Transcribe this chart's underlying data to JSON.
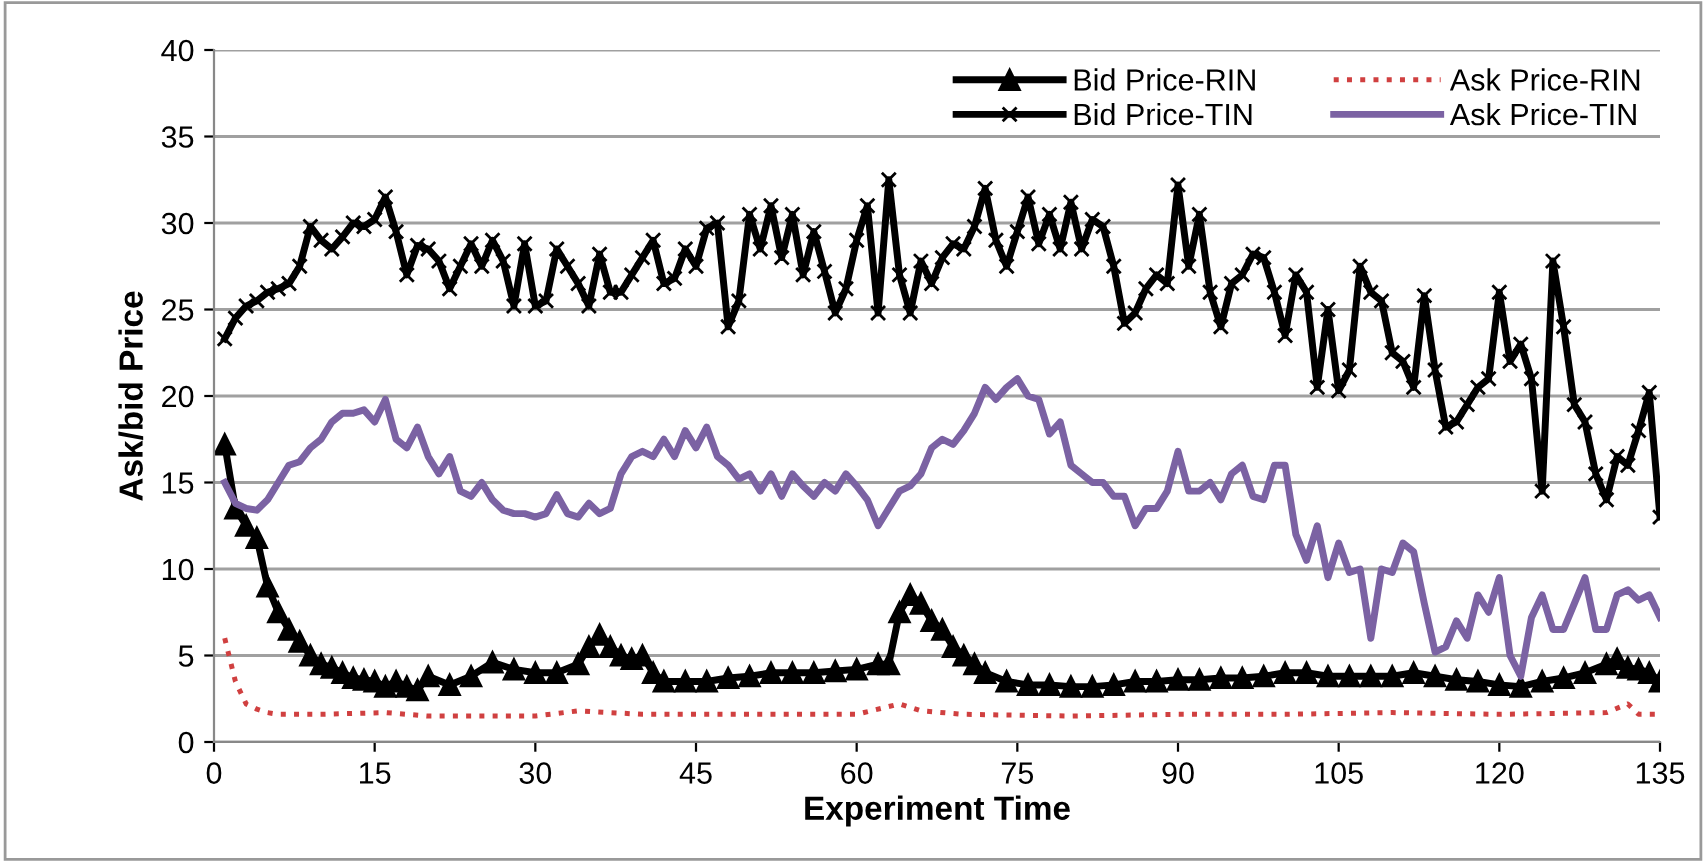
{
  "chart_data": {
    "type": "line",
    "xlabel": "Experiment Time",
    "ylabel": "Ask/bid Price",
    "xlim": [
      0,
      135
    ],
    "xticks": [
      0,
      15,
      30,
      45,
      60,
      75,
      90,
      105,
      120,
      135
    ],
    "ylim": [
      0,
      40
    ],
    "yticks": [
      0,
      5,
      10,
      15,
      20,
      25,
      30,
      35,
      40
    ],
    "grid": "y",
    "legend": "top right",
    "series": [
      {
        "name": "Bid Price-RIN",
        "color": "#000000",
        "marker": "triangle",
        "line_style": "solid",
        "x": [
          1,
          2,
          3,
          4,
          5,
          6,
          7,
          8,
          9,
          10,
          11,
          12,
          13,
          14,
          15,
          16,
          17,
          18,
          19,
          20,
          22,
          24,
          26,
          28,
          30,
          32,
          34,
          35,
          36,
          37,
          38,
          39,
          40,
          41,
          42,
          44,
          46,
          48,
          50,
          52,
          54,
          56,
          58,
          60,
          62,
          63,
          64,
          65,
          66,
          67,
          68,
          69,
          70,
          71,
          72,
          74,
          76,
          78,
          80,
          82,
          84,
          86,
          88,
          90,
          92,
          94,
          96,
          98,
          100,
          102,
          104,
          106,
          108,
          110,
          112,
          114,
          116,
          118,
          120,
          122,
          124,
          126,
          128,
          130,
          131,
          132,
          133,
          134,
          135
        ],
        "values": [
          17.2,
          13.5,
          12.5,
          11.8,
          9,
          7.5,
          6.5,
          5.8,
          5,
          4.5,
          4.3,
          4,
          3.7,
          3.6,
          3.5,
          3.2,
          3.5,
          3.2,
          3,
          3.8,
          3.3,
          3.8,
          4.6,
          4.2,
          4,
          4,
          4.5,
          5.5,
          6.2,
          5.5,
          5,
          4.8,
          5,
          4,
          3.5,
          3.5,
          3.5,
          3.7,
          3.8,
          4,
          4,
          4,
          4.1,
          4.2,
          4.5,
          4.5,
          7.5,
          8.5,
          8,
          7,
          6.5,
          5.5,
          5,
          4.5,
          4,
          3.5,
          3.3,
          3.3,
          3.2,
          3.2,
          3.3,
          3.5,
          3.5,
          3.6,
          3.6,
          3.7,
          3.7,
          3.8,
          4,
          4,
          3.8,
          3.8,
          3.8,
          3.8,
          4,
          3.8,
          3.6,
          3.5,
          3.3,
          3.2,
          3.5,
          3.7,
          4,
          4.5,
          4.8,
          4.3,
          4.2,
          4,
          3.5
        ]
      },
      {
        "name": "Ask Price-RIN",
        "color": "#d04040",
        "marker": "none",
        "line_style": "dotted",
        "x": [
          1,
          2,
          3,
          4,
          5,
          6,
          10,
          16,
          20,
          30,
          34,
          40,
          50,
          60,
          64,
          66,
          70,
          80,
          90,
          100,
          110,
          120,
          130,
          132,
          133,
          135
        ],
        "values": [
          6,
          3.5,
          2.2,
          1.9,
          1.7,
          1.6,
          1.6,
          1.7,
          1.5,
          1.5,
          1.8,
          1.6,
          1.6,
          1.6,
          2.2,
          1.8,
          1.6,
          1.5,
          1.6,
          1.6,
          1.7,
          1.6,
          1.7,
          2.2,
          1.6,
          1.6
        ]
      },
      {
        "name": "Bid Price-TIN",
        "color": "#000000",
        "marker": "cross",
        "line_style": "solid",
        "x": [
          1,
          2,
          3,
          4,
          5,
          6,
          7,
          8,
          9,
          10,
          11,
          12,
          13,
          14,
          15,
          16,
          17,
          18,
          19,
          20,
          21,
          22,
          23,
          24,
          25,
          26,
          27,
          28,
          29,
          30,
          31,
          32,
          33,
          34,
          35,
          36,
          37,
          38,
          39,
          40,
          41,
          42,
          43,
          44,
          45,
          46,
          47,
          48,
          49,
          50,
          51,
          52,
          53,
          54,
          55,
          56,
          57,
          58,
          59,
          60,
          61,
          62,
          63,
          64,
          65,
          66,
          67,
          68,
          69,
          70,
          71,
          72,
          73,
          74,
          75,
          76,
          77,
          78,
          79,
          80,
          81,
          82,
          83,
          84,
          85,
          86,
          87,
          88,
          89,
          90,
          91,
          92,
          93,
          94,
          95,
          96,
          97,
          98,
          99,
          100,
          101,
          102,
          103,
          104,
          105,
          106,
          107,
          108,
          109,
          110,
          111,
          112,
          113,
          114,
          115,
          116,
          117,
          118,
          119,
          120,
          121,
          122,
          123,
          124,
          125,
          126,
          127,
          128,
          129,
          130,
          131,
          132,
          133,
          134,
          135
        ],
        "values": [
          23.3,
          24.5,
          25.2,
          25.5,
          26,
          26.2,
          26.5,
          27.5,
          29.8,
          29,
          28.5,
          29.2,
          30,
          29.8,
          30.2,
          31.5,
          29.5,
          27,
          28.7,
          28.5,
          27.8,
          26.2,
          27.5,
          28.8,
          27.5,
          29,
          27.8,
          25.2,
          28.8,
          25.2,
          25.5,
          28.5,
          27.5,
          26.5,
          25.2,
          28.2,
          26,
          26,
          27,
          28,
          29,
          26.5,
          26.8,
          28.5,
          27.5,
          29.7,
          30,
          24,
          25.5,
          30.5,
          28.5,
          31,
          28,
          30.5,
          27,
          29.5,
          27.2,
          24.8,
          26.2,
          29,
          31,
          24.8,
          32.5,
          27,
          24.8,
          27.8,
          26.5,
          28,
          28.8,
          28.5,
          29.8,
          32,
          29,
          27.5,
          29.5,
          31.5,
          28.8,
          30.5,
          28.5,
          31.2,
          28.5,
          30.2,
          29.8,
          27.5,
          24.2,
          24.8,
          26.2,
          27,
          26.5,
          32.2,
          27.5,
          30.5,
          26,
          24,
          26.5,
          27,
          28.2,
          28,
          26,
          23.5,
          27,
          26,
          20.5,
          25,
          20.3,
          21.5,
          27.5,
          26,
          25.5,
          22.5,
          22,
          20.5,
          25.8,
          21.5,
          18.2,
          18.5,
          19.5,
          20.5,
          21,
          26,
          22,
          23,
          21,
          14.5,
          27.8,
          24,
          19.5,
          18.5,
          15.5,
          14,
          16.5,
          16,
          18,
          20.2,
          13
        ]
      },
      {
        "name": "Ask Price-TIN",
        "color": "#7b62a3",
        "marker": "none",
        "line_style": "solid",
        "x": [
          1,
          2,
          3,
          4,
          5,
          6,
          7,
          8,
          9,
          10,
          11,
          12,
          13,
          14,
          15,
          16,
          17,
          18,
          19,
          20,
          21,
          22,
          23,
          24,
          25,
          26,
          27,
          28,
          29,
          30,
          31,
          32,
          33,
          34,
          35,
          36,
          37,
          38,
          39,
          40,
          41,
          42,
          43,
          44,
          45,
          46,
          47,
          48,
          49,
          50,
          51,
          52,
          53,
          54,
          55,
          56,
          57,
          58,
          59,
          60,
          61,
          62,
          63,
          64,
          65,
          66,
          67,
          68,
          69,
          70,
          71,
          72,
          73,
          74,
          75,
          76,
          77,
          78,
          79,
          80,
          81,
          82,
          83,
          84,
          85,
          86,
          87,
          88,
          89,
          90,
          91,
          92,
          93,
          94,
          95,
          96,
          97,
          98,
          99,
          100,
          101,
          102,
          103,
          104,
          105,
          106,
          107,
          108,
          109,
          110,
          111,
          112,
          113,
          114,
          115,
          116,
          117,
          118,
          119,
          120,
          121,
          122,
          123,
          124,
          125,
          126,
          127,
          128,
          129,
          130,
          131,
          132,
          133,
          134,
          135
        ],
        "values": [
          15,
          13.8,
          13.5,
          13.4,
          14,
          15,
          16,
          16.2,
          17,
          17.5,
          18.5,
          19,
          19,
          19.2,
          18.5,
          19.8,
          17.5,
          17,
          18.2,
          16.5,
          15.5,
          16.5,
          14.5,
          14.2,
          15,
          14,
          13.4,
          13.2,
          13.2,
          13,
          13.2,
          14.3,
          13.2,
          13,
          13.8,
          13.2,
          13.5,
          15.5,
          16.5,
          16.8,
          16.5,
          17.5,
          16.5,
          18,
          17,
          18.2,
          16.5,
          16,
          15.2,
          15.5,
          14.5,
          15.5,
          14.2,
          15.5,
          14.8,
          14.2,
          15,
          14.5,
          15.5,
          14.8,
          14,
          12.5,
          13.5,
          14.5,
          14.8,
          15.5,
          17,
          17.5,
          17.2,
          18,
          19,
          20.5,
          19.8,
          20.5,
          21,
          20,
          19.8,
          17.8,
          18.5,
          16,
          15.5,
          15,
          15,
          14.2,
          14.2,
          12.5,
          13.5,
          13.5,
          14.5,
          16.8,
          14.5,
          14.5,
          15,
          14,
          15.5,
          16,
          14.2,
          14,
          16,
          16,
          12,
          10.5,
          12.5,
          9.5,
          11.5,
          9.8,
          10,
          6,
          10,
          9.8,
          11.5,
          11,
          8,
          5.2,
          5.5,
          7,
          6,
          8.5,
          7.5,
          9.5,
          5,
          3.8,
          7.2,
          8.5,
          6.5,
          6.5,
          8,
          9.5,
          6.5,
          6.5,
          8.5,
          8.8,
          8.2,
          8.5,
          7.2
        ]
      }
    ]
  }
}
